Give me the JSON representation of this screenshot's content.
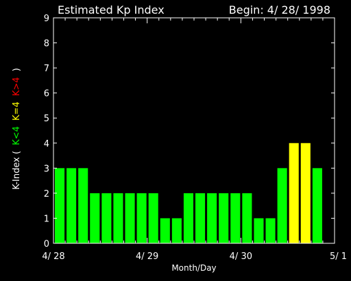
{
  "header": {
    "title": "Estimated Kp Index",
    "begin": "Begin: 4/ 28/ 1998"
  },
  "ylabel": {
    "prefix": "K-Index (",
    "low": "K<4",
    "mid": "K=4",
    "high": "K>4",
    "suffix": ")"
  },
  "colors": {
    "background": "#000000",
    "axis": "#ffffff",
    "low": "#00ff00",
    "mid": "#ffff00",
    "high": "#ff0000"
  },
  "chart_data": {
    "type": "bar",
    "title": "Estimated Kp Index",
    "subtitle": "Begin: 4/ 28/ 1998",
    "xlabel": "Month/Day",
    "ylabel": "K-Index ( K<4 K=4 K>4 )",
    "ylim": [
      0,
      9
    ],
    "yticks": [
      "0",
      "1",
      "2",
      "3",
      "4",
      "5",
      "6",
      "7",
      "8",
      "9"
    ],
    "xticks": [
      "4/ 28",
      "4/ 29",
      "4/ 30",
      "5/ 1"
    ],
    "bars_per_day": 8,
    "values": [
      3,
      3,
      3,
      2,
      2,
      2,
      2,
      2,
      2,
      1,
      1,
      2,
      2,
      2,
      2,
      2,
      2,
      1,
      1,
      3,
      4,
      4,
      3
    ],
    "color_rule": "green if K<4, yellow if K=4, red if K>4",
    "grid": false
  }
}
